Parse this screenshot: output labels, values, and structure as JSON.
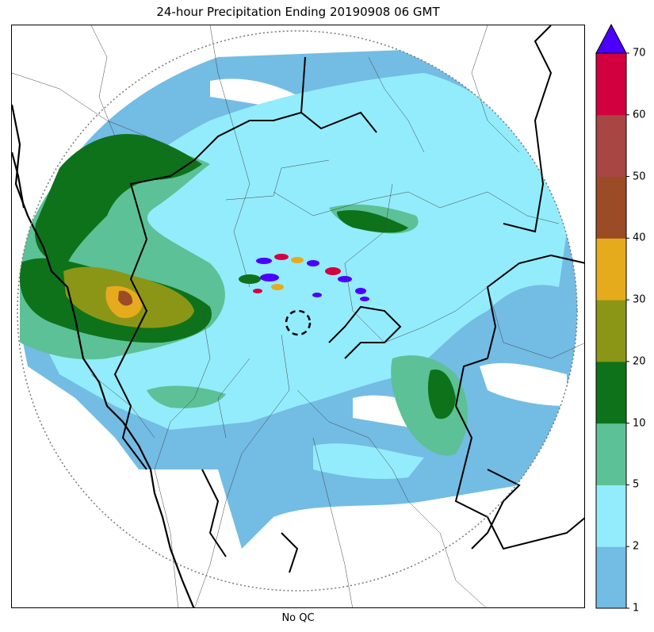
{
  "title": "24-hour Precipitation Ending 20190908 06 GMT",
  "xlabel": "No QC",
  "colorbar": {
    "ticks": [
      "1",
      "2",
      "5",
      "10",
      "20",
      "30",
      "40",
      "50",
      "60",
      "70"
    ],
    "bins": [
      {
        "from": "1",
        "to": "2",
        "color": "#73bce4"
      },
      {
        "from": "2",
        "to": "5",
        "color": "#93ecfc"
      },
      {
        "from": "5",
        "to": "10",
        "color": "#5cc196"
      },
      {
        "from": "10",
        "to": "20",
        "color": "#0e721b"
      },
      {
        "from": "20",
        "to": "30",
        "color": "#8b9617"
      },
      {
        "from": "30",
        "to": "40",
        "color": "#e6ab1d"
      },
      {
        "from": "40",
        "to": "50",
        "color": "#9b4b26"
      },
      {
        "from": "50",
        "to": "60",
        "color": "#a74643"
      },
      {
        "from": "60",
        "to": "70",
        "color": "#d3003f"
      }
    ],
    "extend_color": "#4b00ff"
  },
  "map": {
    "range_ring": "dotted",
    "radar_site_marker": "dashed-circle",
    "layers": [
      "precipitation-field",
      "district-boundaries",
      "state-boundaries",
      "coastline"
    ]
  }
}
